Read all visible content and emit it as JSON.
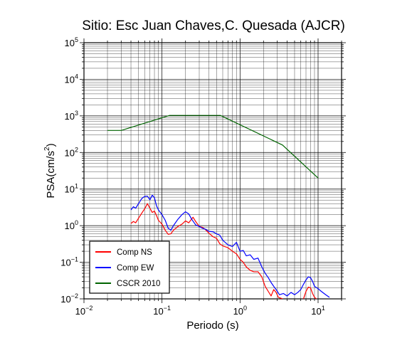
{
  "chart_data": {
    "type": "line",
    "title": "Sitio: Esc Juan Chaves,C. Quesada (AJCR)",
    "xlabel": "Periodo (s)",
    "ylabel_base": "PSA(cm/s",
    "ylabel_exp": "2",
    "ylabel_close": ")",
    "x_scale": "log",
    "y_scale": "log",
    "xlim": [
      0.01,
      20
    ],
    "ylim": [
      0.01,
      100000
    ],
    "grid": true,
    "legend_position": "bottom-left",
    "x_ticks": [
      {
        "base": "10",
        "exp": "−2",
        "value": 0.01
      },
      {
        "base": "10",
        "exp": "−1",
        "value": 0.1
      },
      {
        "base": "10",
        "exp": "0",
        "value": 1
      },
      {
        "base": "10",
        "exp": "1",
        "value": 10
      }
    ],
    "y_ticks": [
      {
        "base": "10",
        "exp": "−2",
        "value": 0.01
      },
      {
        "base": "10",
        "exp": "−1",
        "value": 0.1
      },
      {
        "base": "10",
        "exp": "0",
        "value": 1
      },
      {
        "base": "10",
        "exp": "1",
        "value": 10
      },
      {
        "base": "10",
        "exp": "2",
        "value": 100
      },
      {
        "base": "10",
        "exp": "3",
        "value": 1000
      },
      {
        "base": "10",
        "exp": "4",
        "value": 10000
      },
      {
        "base": "10",
        "exp": "5",
        "value": 100000
      }
    ],
    "series": [
      {
        "name": "Comp NS",
        "color": "#ff0000",
        "points": [
          [
            0.04,
            1.15
          ],
          [
            0.043,
            1.3
          ],
          [
            0.046,
            1.2
          ],
          [
            0.05,
            1.6
          ],
          [
            0.055,
            2.2
          ],
          [
            0.06,
            2.9
          ],
          [
            0.065,
            4.0
          ],
          [
            0.07,
            3.0
          ],
          [
            0.075,
            2.3
          ],
          [
            0.08,
            2.5
          ],
          [
            0.085,
            1.9
          ],
          [
            0.09,
            1.4
          ],
          [
            0.1,
            1.1
          ],
          [
            0.11,
            0.75
          ],
          [
            0.12,
            0.58
          ],
          [
            0.13,
            0.6
          ],
          [
            0.14,
            0.75
          ],
          [
            0.16,
            0.95
          ],
          [
            0.18,
            1.1
          ],
          [
            0.2,
            1.35
          ],
          [
            0.22,
            1.2
          ],
          [
            0.25,
            1.7
          ],
          [
            0.27,
            1.3
          ],
          [
            0.3,
            0.95
          ],
          [
            0.33,
            0.9
          ],
          [
            0.36,
            0.78
          ],
          [
            0.4,
            0.62
          ],
          [
            0.45,
            0.5
          ],
          [
            0.5,
            0.45
          ],
          [
            0.55,
            0.32
          ],
          [
            0.6,
            0.28
          ],
          [
            0.7,
            0.25
          ],
          [
            0.8,
            0.2
          ],
          [
            0.9,
            0.17
          ],
          [
            1.0,
            0.12
          ],
          [
            1.1,
            0.1
          ],
          [
            1.2,
            0.075
          ],
          [
            1.35,
            0.06
          ],
          [
            1.5,
            0.055
          ],
          [
            1.7,
            0.055
          ],
          [
            1.9,
            0.04
          ],
          [
            2.1,
            0.022
          ],
          [
            2.3,
            0.016
          ],
          [
            2.5,
            0.012
          ],
          [
            2.7,
            0.018
          ],
          [
            2.9,
            0.015
          ],
          [
            3.1,
            0.011
          ],
          [
            3.5,
            0.01
          ],
          [
            4.0,
            0.008
          ],
          [
            5.0,
            0.006
          ],
          [
            6.0,
            0.008
          ],
          [
            6.5,
            0.01
          ],
          [
            7.0,
            0.016
          ],
          [
            7.5,
            0.021
          ],
          [
            8.0,
            0.02
          ],
          [
            8.5,
            0.014
          ],
          [
            9.0,
            0.011
          ],
          [
            10.0,
            0.009
          ],
          [
            12.0,
            0.006
          ],
          [
            13.5,
            0.005
          ]
        ]
      },
      {
        "name": "Comp EW",
        "color": "#0000ff",
        "points": [
          [
            0.04,
            2.7
          ],
          [
            0.043,
            3.3
          ],
          [
            0.046,
            3.0
          ],
          [
            0.05,
            4.0
          ],
          [
            0.055,
            5.5
          ],
          [
            0.06,
            6.3
          ],
          [
            0.065,
            6.4
          ],
          [
            0.07,
            5.1
          ],
          [
            0.075,
            6.8
          ],
          [
            0.08,
            5.8
          ],
          [
            0.085,
            3.5
          ],
          [
            0.09,
            2.7
          ],
          [
            0.1,
            2.0
          ],
          [
            0.11,
            1.4
          ],
          [
            0.12,
            0.85
          ],
          [
            0.13,
            0.75
          ],
          [
            0.14,
            1.0
          ],
          [
            0.16,
            1.5
          ],
          [
            0.18,
            2.0
          ],
          [
            0.2,
            2.4
          ],
          [
            0.22,
            2.1
          ],
          [
            0.24,
            1.5
          ],
          [
            0.27,
            1.05
          ],
          [
            0.3,
            0.95
          ],
          [
            0.33,
            0.85
          ],
          [
            0.36,
            0.8
          ],
          [
            0.4,
            0.7
          ],
          [
            0.45,
            0.68
          ],
          [
            0.5,
            0.6
          ],
          [
            0.55,
            0.55
          ],
          [
            0.6,
            0.4
          ],
          [
            0.7,
            0.3
          ],
          [
            0.8,
            0.27
          ],
          [
            0.9,
            0.35
          ],
          [
            1.0,
            0.2
          ],
          [
            1.1,
            0.21
          ],
          [
            1.2,
            0.15
          ],
          [
            1.35,
            0.16
          ],
          [
            1.5,
            0.12
          ],
          [
            1.7,
            0.13
          ],
          [
            1.9,
            0.075
          ],
          [
            2.1,
            0.05
          ],
          [
            2.3,
            0.038
          ],
          [
            2.5,
            0.028
          ],
          [
            2.7,
            0.022
          ],
          [
            2.9,
            0.018
          ],
          [
            3.2,
            0.013
          ],
          [
            3.6,
            0.014
          ],
          [
            4.0,
            0.012
          ],
          [
            4.5,
            0.015
          ],
          [
            5.0,
            0.013
          ],
          [
            5.5,
            0.015
          ],
          [
            6.0,
            0.018
          ],
          [
            6.5,
            0.025
          ],
          [
            7.0,
            0.033
          ],
          [
            7.5,
            0.04
          ],
          [
            8.0,
            0.038
          ],
          [
            8.5,
            0.03
          ],
          [
            9.0,
            0.022
          ],
          [
            10.0,
            0.019
          ],
          [
            11.0,
            0.016
          ],
          [
            12.5,
            0.013
          ],
          [
            14.0,
            0.011
          ]
        ]
      },
      {
        "name": "CSCR 2010",
        "color": "#006400",
        "points": [
          [
            0.02,
            400
          ],
          [
            0.03,
            400
          ],
          [
            0.125,
            1030
          ],
          [
            0.56,
            1030
          ],
          [
            3.5,
            160
          ],
          [
            10.0,
            20
          ]
        ]
      }
    ]
  }
}
